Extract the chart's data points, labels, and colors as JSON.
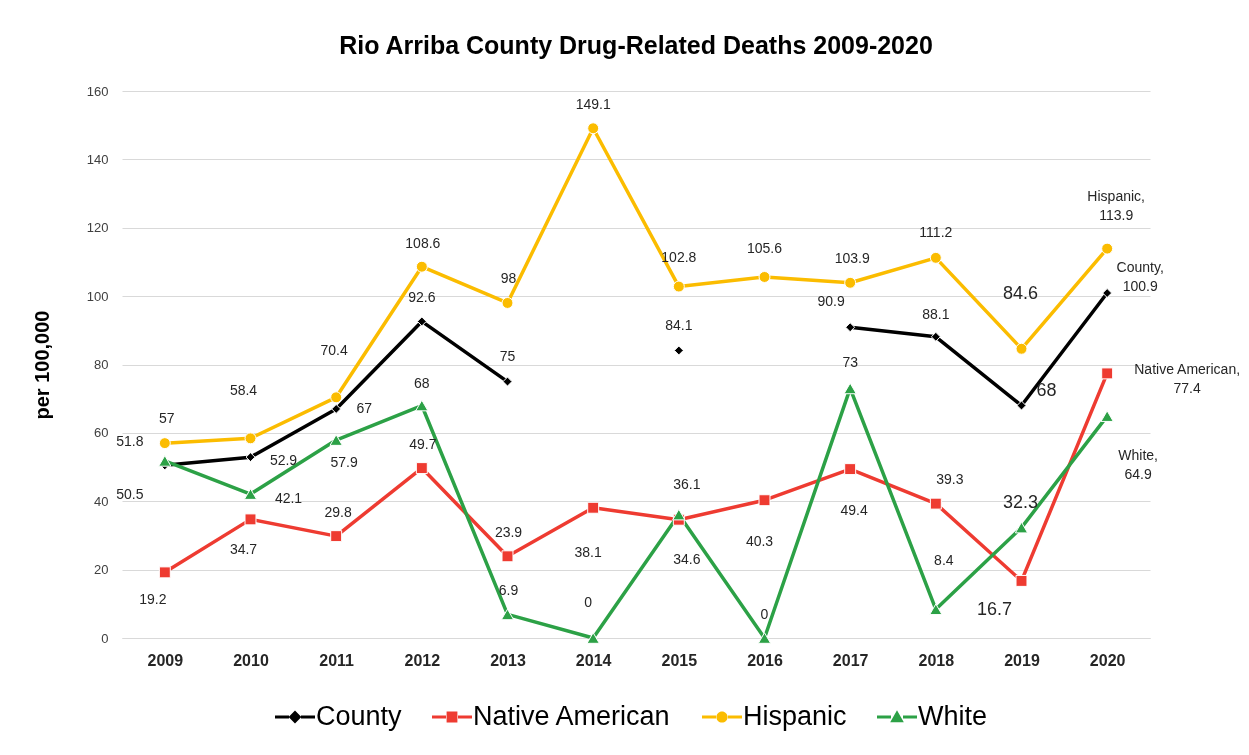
{
  "chart_data": {
    "type": "line",
    "title": "Rio Arriba County Drug-Related Deaths 2009-2020",
    "ylabel": "per 100,000",
    "categories": [
      "2009",
      "2010",
      "2011",
      "2012",
      "2013",
      "2014",
      "2015",
      "2016",
      "2017",
      "2018",
      "2019",
      "2020"
    ],
    "ylim": [
      0,
      160
    ],
    "yticks": [
      0,
      20,
      40,
      60,
      80,
      100,
      120,
      140,
      160
    ],
    "grid": "y",
    "legend": "bottom",
    "line_style": "solid",
    "series": [
      {
        "name": "County",
        "color": "#000000",
        "marker": "diamond",
        "values": [
          50.5,
          52.9,
          67,
          92.6,
          75,
          null,
          84.1,
          null,
          90.9,
          88.1,
          68,
          100.9
        ],
        "value_labels": [
          "50.5",
          "52.9",
          "67",
          "92.6",
          "75",
          null,
          "84.1",
          null,
          "90.9",
          "88.1",
          "68",
          "County, 100.9"
        ]
      },
      {
        "name": "Native American",
        "color": "#ee3b31",
        "marker": "square",
        "values": [
          19.2,
          34.7,
          29.8,
          49.7,
          23.9,
          38.1,
          34.6,
          40.3,
          49.4,
          39.3,
          16.7,
          77.4
        ],
        "value_labels": [
          "19.2",
          "34.7",
          "29.8",
          "49.7",
          "23.9",
          "38.1",
          "34.6",
          "40.3",
          "49.4",
          "39.3",
          "16.7",
          "Native American, 77.4"
        ]
      },
      {
        "name": "Hispanic",
        "color": "#fbbc00",
        "marker": "circle",
        "values": [
          57,
          58.4,
          70.4,
          108.6,
          98,
          149.1,
          102.8,
          105.6,
          103.9,
          111.2,
          84.6,
          113.9
        ],
        "value_labels": [
          "57",
          "58.4",
          "70.4",
          "108.6",
          "98",
          "149.1",
          "102.8",
          "105.6",
          "103.9",
          "111.2",
          "84.6",
          "Hispanic, 113.9"
        ]
      },
      {
        "name": "White",
        "color": "#2ca146",
        "marker": "triangle",
        "values": [
          51.8,
          42.1,
          57.9,
          68,
          6.9,
          0,
          36.1,
          0,
          73,
          8.4,
          32.3,
          64.9
        ],
        "value_labels": [
          "51.8",
          "42.1",
          "57.9",
          "68",
          "6.9",
          "0",
          "36.1",
          "0",
          "73",
          "8.4",
          "32.3",
          "White, 64.9"
        ]
      }
    ]
  }
}
